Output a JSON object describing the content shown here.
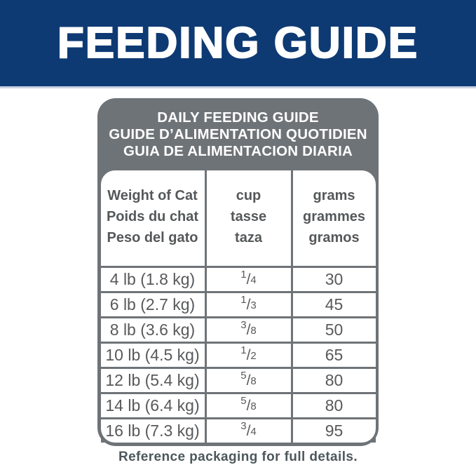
{
  "banner": {
    "title": "FEEDING GUIDE",
    "bg_color": "#0e3a73",
    "text_color": "#ffffff"
  },
  "card": {
    "bg_color": "#6e7377",
    "title_lines": [
      "DAILY FEEDING GUIDE",
      "GUIDE D’ALIMENTATION QUOTIDIEN",
      "GUIA DE ALIMENTACION DIARIA"
    ]
  },
  "table": {
    "text_color": "#58595b",
    "fraction_separator": "/",
    "columns": [
      {
        "header_lines": [
          "Weight of Cat",
          "Poids du chat",
          "Peso del gato"
        ]
      },
      {
        "header_lines": [
          "cup",
          "tasse",
          "taza"
        ]
      },
      {
        "header_lines": [
          "grams",
          "grammes",
          "gramos"
        ]
      }
    ],
    "rows": [
      {
        "weight": "4 lb (1.8 kg)",
        "cup": {
          "num": "1",
          "den": "4"
        },
        "grams": "30"
      },
      {
        "weight": "6 lb (2.7 kg)",
        "cup": {
          "num": "1",
          "den": "3"
        },
        "grams": "45"
      },
      {
        "weight": "8 lb (3.6 kg)",
        "cup": {
          "num": "3",
          "den": "8"
        },
        "grams": "50"
      },
      {
        "weight": "10 lb (4.5 kg)",
        "cup": {
          "num": "1",
          "den": "2"
        },
        "grams": "65"
      },
      {
        "weight": "12 lb (5.4 kg)",
        "cup": {
          "num": "5",
          "den": "8"
        },
        "grams": "80"
      },
      {
        "weight": "14 lb (6.4 kg)",
        "cup": {
          "num": "5",
          "den": "8"
        },
        "grams": "80"
      },
      {
        "weight": "16 lb (7.3 kg)",
        "cup": {
          "num": "3",
          "den": "4"
        },
        "grams": "95"
      }
    ]
  },
  "footer": {
    "note": "Reference packaging for full details."
  }
}
